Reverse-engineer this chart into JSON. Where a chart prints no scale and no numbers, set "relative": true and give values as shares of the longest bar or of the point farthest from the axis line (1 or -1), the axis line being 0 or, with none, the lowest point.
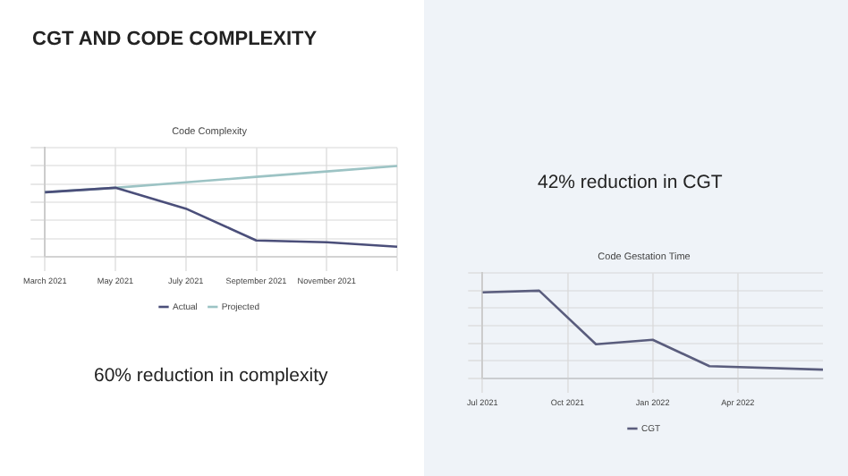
{
  "chart_data": [
    {
      "type": "line",
      "title": "Code Complexity",
      "relative": true,
      "grid": true,
      "legend": "bottom",
      "marker": "none",
      "categories": [
        "March 2021",
        "May 2021",
        "July 2021",
        "September 2021",
        "November 2021",
        null
      ],
      "series": [
        {
          "name": "Actual",
          "color": "#4b4f7a",
          "values": [
            0.71,
            0.76,
            0.53,
            0.18,
            0.16,
            0.11
          ]
        },
        {
          "name": "Projected",
          "color": "#9cc3c4",
          "values": [
            0.71,
            0.76,
            0.82,
            0.88,
            0.94,
            1.0
          ]
        }
      ],
      "annotations": [
        "CGT AND CODE COMPLEXITY",
        "60% reduction in complexity"
      ]
    },
    {
      "type": "line",
      "title": "Code Gestation Time",
      "relative": true,
      "grid": true,
      "legend": "bottom",
      "marker": "none",
      "x": [
        "2021-07",
        "2021-09",
        "2021-11",
        "2022-01",
        "2022-03",
        "2022-07"
      ],
      "xlim": [
        "2021-07",
        "2022-07"
      ],
      "xticks": [
        {
          "value": "2021-07",
          "label": "Jul 2021"
        },
        {
          "value": "2021-10",
          "label": "Oct 2021"
        },
        {
          "value": "2022-01",
          "label": "Jan 2022"
        },
        {
          "value": "2022-04",
          "label": "Apr 2022"
        }
      ],
      "series": [
        {
          "name": "CGT",
          "color": "#5a5d7d",
          "values": [
            0.98,
            1,
            0.39,
            0.44,
            0.14,
            0.1
          ]
        }
      ],
      "annotations": [
        "42% reduction in CGT"
      ]
    }
  ]
}
